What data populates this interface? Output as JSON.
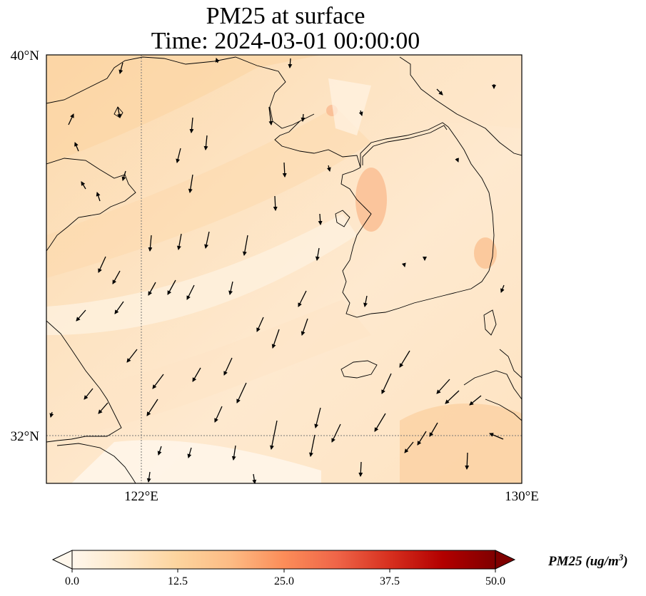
{
  "title": {
    "line1": "PM25 at surface",
    "line2": "Time: 2024-03-01 00:00:00"
  },
  "map": {
    "lon_range": [
      118,
      130
    ],
    "lat_range": [
      30.8,
      40
    ],
    "gridlines": {
      "lon": [
        122
      ],
      "lat": [
        32
      ]
    },
    "lat_ticks": [
      {
        "value": 40,
        "label": "40°N"
      },
      {
        "value": 32,
        "label": "32°N"
      }
    ],
    "lon_ticks": [
      {
        "value": 122,
        "label": "122°E"
      },
      {
        "value": 130,
        "label": "130°E"
      }
    ],
    "field": "PM25",
    "colormap": "OrRd",
    "vectors": "wind arrows, predominantly from the north"
  },
  "colorbar": {
    "label": "PM25 (ug/m",
    "label_sup": "3",
    "label_end": ")",
    "range": [
      0,
      50
    ],
    "ticks": [
      "0.0",
      "12.5",
      "25.0",
      "37.5",
      "50.0"
    ],
    "extend": "both",
    "colors": [
      "#fff7ec",
      "#fee8c8",
      "#fdd49e",
      "#fdbb84",
      "#fc8d59",
      "#ef6548",
      "#d7301f",
      "#b30000",
      "#7f0000"
    ]
  }
}
